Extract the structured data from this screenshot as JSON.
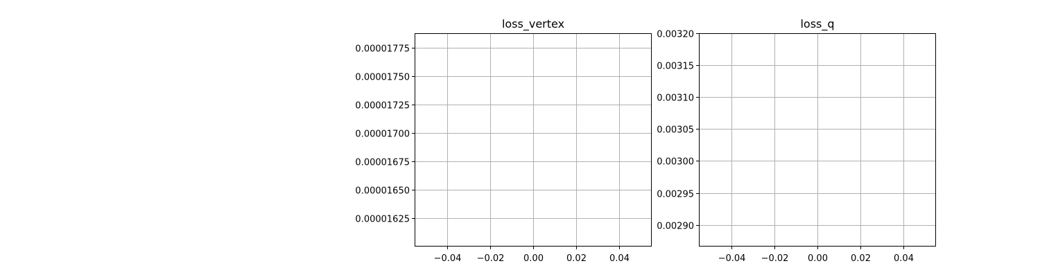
{
  "chart_data": [
    {
      "type": "line",
      "title": "loss_vertex",
      "xlabel": "",
      "ylabel": "",
      "x_ticks": [
        -0.04,
        -0.02,
        0.0,
        0.02,
        0.04
      ],
      "x_tick_labels": [
        "−0.04",
        "−0.02",
        "0.00",
        "0.02",
        "0.04"
      ],
      "xlim": [
        -0.055,
        0.055
      ],
      "y_ticks": [
        1.625e-05,
        1.65e-05,
        1.675e-05,
        1.7e-05,
        1.725e-05,
        1.75e-05,
        1.775e-05
      ],
      "y_tick_labels": [
        "0.00001625",
        "0.00001650",
        "0.00001675",
        "0.00001700",
        "0.00001725",
        "0.00001750",
        "0.00001775"
      ],
      "ylim": [
        1.6e-05,
        1.788e-05
      ],
      "grid": true,
      "series": []
    },
    {
      "type": "line",
      "title": "loss_q",
      "xlabel": "",
      "ylabel": "",
      "x_ticks": [
        -0.04,
        -0.02,
        0.0,
        0.02,
        0.04
      ],
      "x_tick_labels": [
        "−0.04",
        "−0.02",
        "0.00",
        "0.02",
        "0.04"
      ],
      "xlim": [
        -0.055,
        0.055
      ],
      "y_ticks": [
        0.0029,
        0.00295,
        0.003,
        0.00305,
        0.0031,
        0.00315,
        0.0032
      ],
      "y_tick_labels": [
        "0.00290",
        "0.00295",
        "0.00300",
        "0.00305",
        "0.00310",
        "0.00315",
        "0.00320"
      ],
      "ylim": [
        0.002866,
        0.0032
      ],
      "grid": true,
      "series": []
    }
  ]
}
